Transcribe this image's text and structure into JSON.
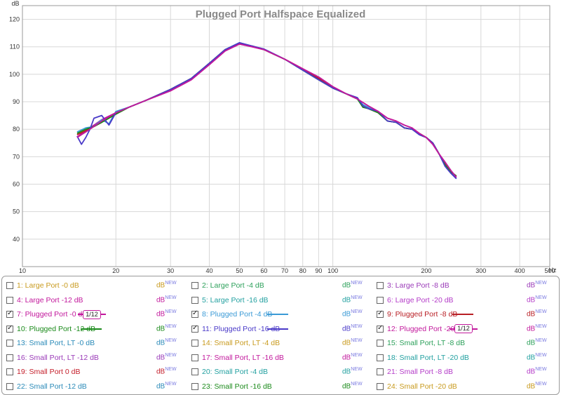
{
  "chart_data": {
    "type": "line",
    "title": "Plugged Port Halfspace Equalized",
    "ylabel": "dB",
    "xunit": "Hz",
    "xscale": "log",
    "xlim": [
      10,
      500
    ],
    "ylim": [
      30,
      125
    ],
    "grid": true,
    "legend_placement": "bottom",
    "xticks": [
      {
        "v": 10,
        "label": "10"
      },
      {
        "v": 20,
        "label": "20"
      },
      {
        "v": 30,
        "label": "30"
      },
      {
        "v": 40,
        "label": "40"
      },
      {
        "v": 50,
        "label": "50"
      },
      {
        "v": 60,
        "label": "60"
      },
      {
        "v": 70,
        "label": "70"
      },
      {
        "v": 80,
        "label": "80"
      },
      {
        "v": 90,
        "label": "90"
      },
      {
        "v": 100,
        "label": "100"
      },
      {
        "v": 200,
        "label": "200"
      },
      {
        "v": 300,
        "label": "300"
      },
      {
        "v": 400,
        "label": "400"
      },
      {
        "v": 500,
        "label": "500"
      }
    ],
    "yticks": [
      40,
      50,
      60,
      70,
      80,
      90,
      100,
      110,
      120
    ],
    "series": [
      {
        "name": "7: Plugged Port -0 dB",
        "color": "#c2189c",
        "x": [
          15,
          16,
          17,
          18,
          20,
          22,
          25,
          30,
          35,
          40,
          45,
          50,
          55,
          60,
          70,
          80,
          90,
          100,
          110,
          120,
          130,
          140,
          150,
          160,
          170,
          180,
          190,
          200,
          210,
          220,
          230,
          240,
          250
        ],
        "y": [
          77.2,
          79.5,
          81.5,
          83.5,
          86,
          88,
          90.5,
          94,
          98,
          103.5,
          108.5,
          111,
          110,
          109,
          105.5,
          102,
          99,
          95.5,
          93,
          91,
          88.5,
          86.5,
          84,
          83,
          81.5,
          80.5,
          78.5,
          77,
          74.5,
          71,
          68,
          65,
          62.5
        ]
      },
      {
        "name": "8: Plugged Port -4 dB",
        "color": "#3a9ad6",
        "x": [
          15,
          16,
          17,
          18,
          19,
          20,
          22,
          25,
          30,
          35,
          40,
          45,
          50,
          55,
          60,
          70,
          80,
          90,
          100,
          110,
          120,
          125,
          130,
          140,
          150,
          160,
          170,
          180,
          190,
          200,
          210,
          220,
          230,
          240,
          250
        ],
        "y": [
          79,
          80.5,
          81,
          83.5,
          82,
          86.5,
          88,
          90.5,
          94.5,
          98.5,
          104,
          109,
          111.5,
          110.2,
          109.2,
          105.5,
          101.5,
          98,
          95,
          93,
          91,
          89,
          88,
          86,
          83,
          82.5,
          80.5,
          80,
          78,
          77,
          75,
          71,
          67,
          64.5,
          62
        ]
      },
      {
        "name": "9: Plugged Port -8 dB",
        "color": "#b81e24",
        "x": [
          15,
          16,
          17,
          18,
          20,
          22,
          25,
          30,
          35,
          40,
          45,
          50,
          55,
          60,
          70,
          80,
          90,
          100,
          110,
          120,
          125,
          130,
          140,
          150,
          160,
          170,
          180,
          190,
          200,
          210,
          220,
          230,
          240,
          250
        ],
        "y": [
          78,
          79.5,
          81,
          82.5,
          85.5,
          88,
          90.5,
          94.5,
          98.5,
          104,
          109,
          111,
          110.2,
          109,
          105.5,
          102,
          98.5,
          95,
          93,
          91,
          88.5,
          87.5,
          86,
          83,
          82.5,
          80.5,
          80,
          78.5,
          77,
          75,
          71,
          67.5,
          64.5,
          63
        ]
      },
      {
        "name": "10: Plugged Port -12 dB",
        "color": "#1a8a1a",
        "x": [
          15,
          16,
          17,
          18,
          20,
          22,
          25,
          30,
          35,
          40,
          45,
          50,
          55,
          60,
          70,
          80,
          90,
          100,
          110,
          120,
          125,
          130,
          140,
          150,
          160,
          170,
          180,
          190,
          200,
          210,
          220,
          230,
          240,
          250
        ],
        "y": [
          78.5,
          80,
          81,
          82.5,
          85.5,
          88,
          90.5,
          94.5,
          98.5,
          104,
          109,
          111.2,
          110.3,
          109,
          105.5,
          101.5,
          98,
          95,
          93,
          91,
          88,
          87.5,
          86,
          83,
          82.5,
          80.5,
          80,
          78.5,
          77,
          75,
          71,
          67,
          64.5,
          63
        ]
      },
      {
        "name": "11: Plugged Port -16 dB",
        "color": "#4a3ac8",
        "x": [
          15,
          15.5,
          16,
          16.5,
          17,
          18,
          19,
          20,
          22,
          25,
          30,
          35,
          40,
          45,
          50,
          55,
          60,
          70,
          80,
          90,
          100,
          110,
          120,
          125,
          130,
          140,
          150,
          160,
          170,
          180,
          190,
          200,
          210,
          220,
          230,
          240,
          250
        ],
        "y": [
          77.5,
          74.5,
          77,
          80,
          84,
          85,
          81.5,
          86,
          88,
          90.5,
          94.5,
          98.5,
          104,
          109,
          111.5,
          110.3,
          109.2,
          105.5,
          101.5,
          98,
          95,
          93,
          91.5,
          88.5,
          87.5,
          86.5,
          83,
          82.5,
          80.5,
          80,
          78,
          77,
          75,
          71,
          66.5,
          64,
          62
        ]
      },
      {
        "name": "12: Plugged Port -20 dB",
        "color": "#c2189c",
        "x": [
          15,
          16,
          17,
          18,
          20,
          22,
          25,
          30,
          35,
          40,
          45,
          50,
          55,
          60,
          70,
          80,
          90,
          100,
          110,
          120,
          130,
          140,
          150,
          160,
          170,
          180,
          190,
          200,
          210,
          220,
          230,
          240,
          250
        ],
        "y": [
          77,
          79,
          81,
          83,
          86,
          88,
          90.5,
          94,
          98,
          103.5,
          108.5,
          111,
          110,
          109,
          105.5,
          102,
          99,
          95.5,
          93,
          91,
          88.5,
          86.5,
          84,
          83,
          81.5,
          80.5,
          78.5,
          77,
          74.5,
          71,
          68,
          65,
          62.5
        ]
      }
    ]
  },
  "legend": {
    "db_label": "dB",
    "new_label": "NEW",
    "smooth_label": "1/12",
    "items": [
      {
        "label": "1: Large Port -0 dB",
        "color": "#c89a1e",
        "checked": false,
        "indicator": "none"
      },
      {
        "label": "2: Large Port -4 dB",
        "color": "#2ca05a",
        "checked": false,
        "indicator": "none"
      },
      {
        "label": "3: Large Port -8 dB",
        "color": "#9a3ab8",
        "checked": false,
        "indicator": "none"
      },
      {
        "label": "4: Large Port -12 dB",
        "color": "#c2189c",
        "checked": false,
        "indicator": "none"
      },
      {
        "label": "5: Large Port -16 dB",
        "color": "#22a0a0",
        "checked": false,
        "indicator": "none"
      },
      {
        "label": "6: Large Port -20 dB",
        "color": "#b43cc8",
        "checked": false,
        "indicator": "none"
      },
      {
        "label": "7: Plugged Port -0 dB",
        "color": "#c2189c",
        "checked": true,
        "indicator": "smooth"
      },
      {
        "label": "8: Plugged Port -4 dB",
        "color": "#3a9ad6",
        "checked": true,
        "indicator": "line"
      },
      {
        "label": "9: Plugged Port -8 dB",
        "color": "#b81e24",
        "checked": true,
        "indicator": "line"
      },
      {
        "label": "10: Plugged Port -12 dB",
        "color": "#1a8a1a",
        "checked": true,
        "indicator": "line"
      },
      {
        "label": "11: Plugged Port -16 dB",
        "color": "#4a3ac8",
        "checked": true,
        "indicator": "line"
      },
      {
        "label": "12: Plugged Port -20 dB",
        "color": "#c2189c",
        "checked": true,
        "indicator": "smooth"
      },
      {
        "label": "13: Small Port, LT -0 dB",
        "color": "#2a8ab8",
        "checked": false,
        "indicator": "none"
      },
      {
        "label": "14: Small Port, LT -4 dB",
        "color": "#c89a1e",
        "checked": false,
        "indicator": "none"
      },
      {
        "label": "15: Small Port, LT -8 dB",
        "color": "#2ca05a",
        "checked": false,
        "indicator": "none"
      },
      {
        "label": "16: Small Port, LT -12 dB",
        "color": "#9a3ab8",
        "checked": false,
        "indicator": "none"
      },
      {
        "label": "17: Small Port, LT -16 dB",
        "color": "#c2189c",
        "checked": false,
        "indicator": "none"
      },
      {
        "label": "18: Small Port, LT -20 dB",
        "color": "#22a0a0",
        "checked": false,
        "indicator": "none"
      },
      {
        "label": "19: Small Port 0 dB",
        "color": "#c41e2a",
        "checked": false,
        "indicator": "none"
      },
      {
        "label": "20: Small Port -4 dB",
        "color": "#22a0a0",
        "checked": false,
        "indicator": "none"
      },
      {
        "label": "21: Small Port -8 dB",
        "color": "#b43cc8",
        "checked": false,
        "indicator": "none"
      },
      {
        "label": "22: Small Port -12 dB",
        "color": "#2a8ab8",
        "checked": false,
        "indicator": "none"
      },
      {
        "label": "23: Small Port -16 dB",
        "color": "#1a8a1a",
        "checked": false,
        "indicator": "none"
      },
      {
        "label": "24: Small Port -20 dB",
        "color": "#c89a1e",
        "checked": false,
        "indicator": "none"
      }
    ]
  }
}
